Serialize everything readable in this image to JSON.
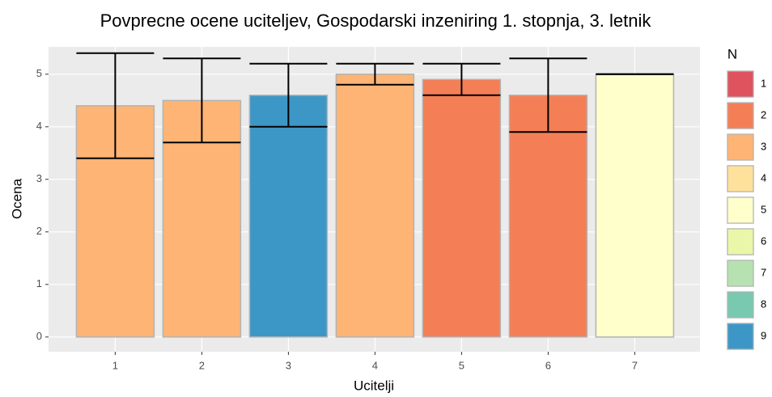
{
  "chart_data": {
    "type": "bar",
    "title": "Povprecne ocene uciteljev, Gospodarski inzeniring 1. stopnja, 3. letnik",
    "x_label": "Ucitelji",
    "y_label": "Ocena",
    "categories": [
      "1",
      "2",
      "3",
      "4",
      "5",
      "6",
      "7"
    ],
    "values": [
      4.4,
      4.5,
      4.6,
      5.0,
      4.9,
      4.6,
      5.0
    ],
    "errors": [
      1.0,
      0.8,
      0.6,
      0.2,
      0.3,
      0.7,
      0
    ],
    "n": [
      3,
      3,
      9,
      3,
      2,
      2,
      5
    ],
    "ylim": [
      -0.28,
      5.52
    ],
    "yticks": [
      0,
      1,
      2,
      3,
      4,
      5
    ],
    "grid": true,
    "legend": {
      "title": "N",
      "position": "right",
      "labels": [
        1,
        2,
        3,
        4,
        5,
        6,
        7,
        8,
        9
      ],
      "colors": [
        "#df535e",
        "#f47f56",
        "#fdb474",
        "#fee19b",
        "#ffffcc",
        "#eaf6a8",
        "#b6e1b0",
        "#78c9b0",
        "#3d97c6"
      ]
    }
  }
}
